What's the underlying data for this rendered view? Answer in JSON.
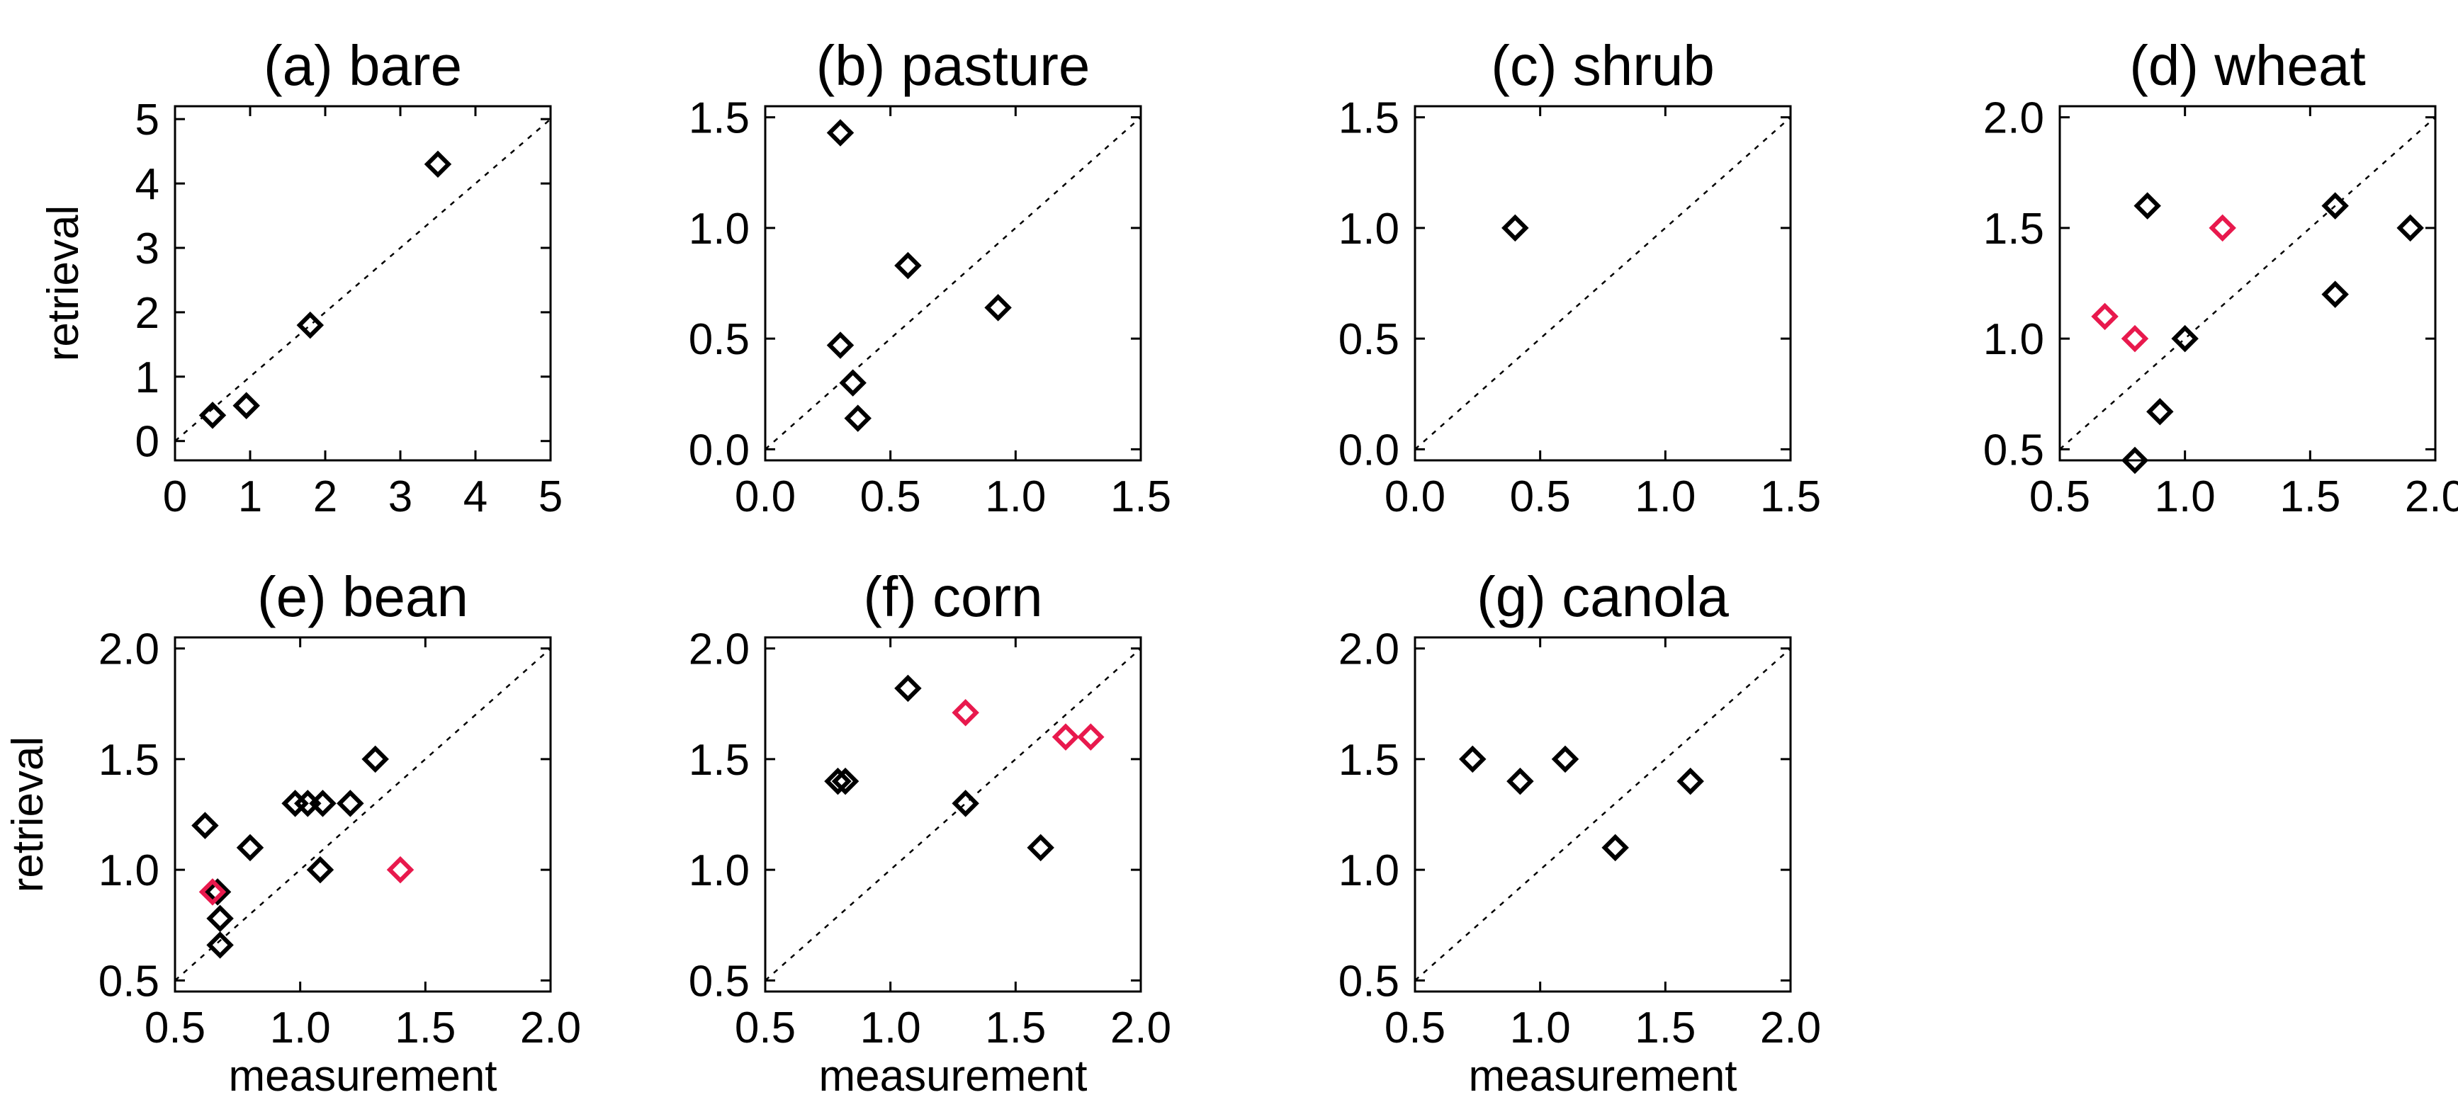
{
  "chart_data": [
    {
      "type": "scatter",
      "title": "(a) bare",
      "xlabel": "",
      "ylabel": "retrieval",
      "xlim": [
        0,
        5
      ],
      "ylim": [
        -0.3,
        5.2
      ],
      "xticks": [
        0,
        1,
        2,
        3,
        4,
        5
      ],
      "xtick_labels": [
        "0",
        "1",
        "2",
        "3",
        "4",
        "5"
      ],
      "yticks": [
        0,
        1,
        2,
        3,
        4,
        5
      ],
      "ytick_labels": [
        "0",
        "1",
        "2",
        "3",
        "4",
        "5"
      ],
      "series": [
        {
          "name": "black",
          "color": "#000000",
          "points": [
            [
              0.5,
              0.4
            ],
            [
              0.95,
              0.55
            ],
            [
              1.8,
              1.8
            ],
            [
              3.5,
              4.3
            ]
          ]
        }
      ]
    },
    {
      "type": "scatter",
      "title": "(b) pasture",
      "xlabel": "",
      "ylabel": "",
      "xlim": [
        0,
        1.5
      ],
      "ylim": [
        -0.05,
        1.55
      ],
      "xticks": [
        0,
        0.5,
        1,
        1.5
      ],
      "xtick_labels": [
        "0.0",
        "0.5",
        "1.0",
        "1.5"
      ],
      "yticks": [
        0,
        0.5,
        1,
        1.5
      ],
      "ytick_labels": [
        "0.0",
        "0.5",
        "1.0",
        "1.5"
      ],
      "series": [
        {
          "name": "black",
          "color": "#000000",
          "points": [
            [
              0.3,
              1.43
            ],
            [
              0.3,
              0.47
            ],
            [
              0.35,
              0.3
            ],
            [
              0.37,
              0.14
            ],
            [
              0.57,
              0.83
            ],
            [
              0.93,
              0.64
            ]
          ]
        }
      ]
    },
    {
      "type": "scatter",
      "title": "(c) shrub",
      "xlabel": "",
      "ylabel": "",
      "xlim": [
        0,
        1.5
      ],
      "ylim": [
        -0.05,
        1.55
      ],
      "xticks": [
        0,
        0.5,
        1,
        1.5
      ],
      "xtick_labels": [
        "0.0",
        "0.5",
        "1.0",
        "1.5"
      ],
      "yticks": [
        0,
        0.5,
        1,
        1.5
      ],
      "ytick_labels": [
        "0.0",
        "0.5",
        "1.0",
        "1.5"
      ],
      "series": [
        {
          "name": "black",
          "color": "#000000",
          "points": [
            [
              0.4,
              1.0
            ]
          ]
        }
      ]
    },
    {
      "type": "scatter",
      "title": "(d) wheat",
      "xlabel": "",
      "ylabel": "",
      "xlim": [
        0.5,
        2.0
      ],
      "ylim": [
        0.45,
        2.05
      ],
      "xticks": [
        0.5,
        1,
        1.5,
        2
      ],
      "xtick_labels": [
        "0.5",
        "1.0",
        "1.5",
        "2.0"
      ],
      "yticks": [
        0.5,
        1,
        1.5,
        2
      ],
      "ytick_labels": [
        "0.5",
        "1.0",
        "1.5",
        "2.0"
      ],
      "series": [
        {
          "name": "black",
          "color": "#000000",
          "points": [
            [
              0.85,
              1.6
            ],
            [
              1.6,
              1.6
            ],
            [
              1.9,
              1.5
            ],
            [
              1.6,
              1.2
            ],
            [
              1.0,
              1.0
            ],
            [
              0.9,
              0.67
            ],
            [
              0.8,
              0.45
            ]
          ]
        },
        {
          "name": "red",
          "color": "#e8194d",
          "points": [
            [
              0.68,
              1.1
            ],
            [
              0.8,
              1.0
            ],
            [
              1.15,
              1.5
            ]
          ]
        }
      ]
    },
    {
      "type": "scatter",
      "title": "(e) bean",
      "xlabel": "measurement",
      "ylabel": "retrieval",
      "xlim": [
        0.5,
        2.0
      ],
      "ylim": [
        0.45,
        2.05
      ],
      "xticks": [
        0.5,
        1,
        1.5,
        2
      ],
      "xtick_labels": [
        "0.5",
        "1.0",
        "1.5",
        "2.0"
      ],
      "yticks": [
        0.5,
        1,
        1.5,
        2
      ],
      "ytick_labels": [
        "0.5",
        "1.0",
        "1.5",
        "2.0"
      ],
      "series": [
        {
          "name": "black",
          "color": "#000000",
          "points": [
            [
              0.62,
              1.2
            ],
            [
              0.67,
              0.9
            ],
            [
              0.68,
              0.78
            ],
            [
              0.68,
              0.66
            ],
            [
              0.8,
              1.1
            ],
            [
              0.98,
              1.3
            ],
            [
              1.03,
              1.3
            ],
            [
              1.09,
              1.3
            ],
            [
              1.2,
              1.3
            ],
            [
              1.08,
              1.0
            ],
            [
              1.3,
              1.5
            ]
          ]
        },
        {
          "name": "red",
          "color": "#e8194d",
          "points": [
            [
              0.65,
              0.9
            ],
            [
              1.4,
              1.0
            ]
          ]
        }
      ]
    },
    {
      "type": "scatter",
      "title": "(f) corn",
      "xlabel": "measurement",
      "ylabel": "",
      "xlim": [
        0.5,
        2.0
      ],
      "ylim": [
        0.45,
        2.05
      ],
      "xticks": [
        0.5,
        1,
        1.5,
        2
      ],
      "xtick_labels": [
        "0.5",
        "1.0",
        "1.5",
        "2.0"
      ],
      "yticks": [
        0.5,
        1,
        1.5,
        2
      ],
      "ytick_labels": [
        "0.5",
        "1.0",
        "1.5",
        "2.0"
      ],
      "series": [
        {
          "name": "black",
          "color": "#000000",
          "points": [
            [
              0.79,
              1.4
            ],
            [
              0.82,
              1.4
            ],
            [
              1.07,
              1.82
            ],
            [
              1.3,
              1.3
            ],
            [
              1.6,
              1.1
            ]
          ]
        },
        {
          "name": "red",
          "color": "#e8194d",
          "points": [
            [
              1.3,
              1.71
            ],
            [
              1.7,
              1.6
            ],
            [
              1.8,
              1.6
            ]
          ]
        }
      ]
    },
    {
      "type": "scatter",
      "title": "(g) canola",
      "xlabel": "measurement",
      "ylabel": "",
      "xlim": [
        0.5,
        2.0
      ],
      "ylim": [
        0.45,
        2.05
      ],
      "xticks": [
        0.5,
        1,
        1.5,
        2
      ],
      "xtick_labels": [
        "0.5",
        "1.0",
        "1.5",
        "2.0"
      ],
      "yticks": [
        0.5,
        1,
        1.5,
        2
      ],
      "ytick_labels": [
        "0.5",
        "1.0",
        "1.5",
        "2.0"
      ],
      "series": [
        {
          "name": "black",
          "color": "#000000",
          "points": [
            [
              0.73,
              1.5
            ],
            [
              0.92,
              1.4
            ],
            [
              1.1,
              1.5
            ],
            [
              1.3,
              1.1
            ],
            [
              1.6,
              1.4
            ]
          ]
        }
      ]
    }
  ]
}
